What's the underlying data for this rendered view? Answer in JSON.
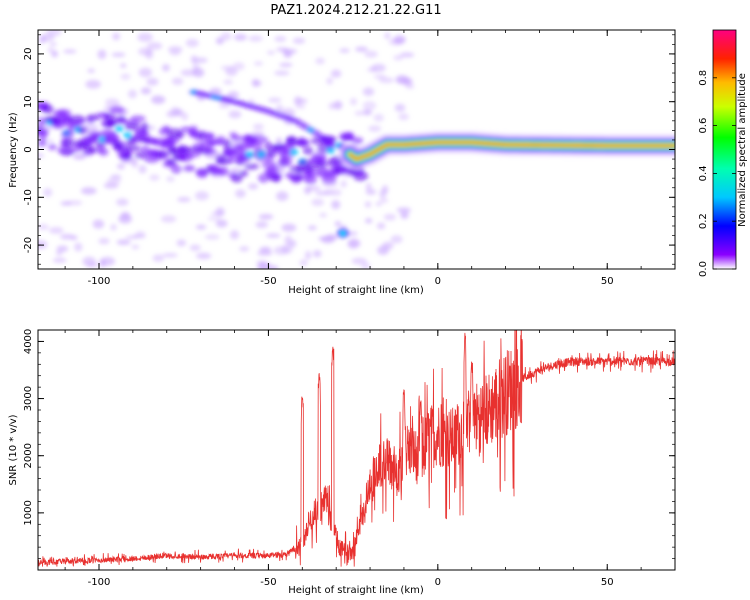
{
  "chart_data": [
    {
      "type": "heatmap",
      "title": "PAZ1.2024.212.21.22.G11",
      "xlabel": "Height of straight line (km)",
      "ylabel": "Frequency (Hz)",
      "xlim": [
        -118,
        70
      ],
      "ylim": [
        -25,
        25
      ],
      "x_ticks": [
        -100,
        -50,
        0,
        50
      ],
      "y_ticks": [
        -20,
        -10,
        0,
        10,
        20
      ],
      "colorbar": {
        "label": "Normalized spectral amplitude",
        "range": [
          0,
          1
        ],
        "ticks": [
          0.0,
          0.2,
          0.4,
          0.6,
          0.8
        ],
        "tick_labels": [
          "0.0",
          "0.2",
          "0.4",
          "0.6",
          "0.8"
        ]
      },
      "colormap_colors": [
        "#ffffff",
        "#7b00ff",
        "#0000ff",
        "#00e5ff",
        "#00ff00",
        "#ffff00",
        "#ff6600",
        "#ff0000",
        "#ff0066"
      ],
      "ridge": [
        {
          "x": -118,
          "y": 5
        },
        {
          "x": -105,
          "y": 3
        },
        {
          "x": -95,
          "y": 4
        },
        {
          "x": -85,
          "y": 1
        },
        {
          "x": -75,
          "y": 0
        },
        {
          "x": -65,
          "y": -1
        },
        {
          "x": -55,
          "y": -2
        },
        {
          "x": -45,
          "y": -2
        },
        {
          "x": -38,
          "y": -3
        },
        {
          "x": -32,
          "y": -2
        },
        {
          "x": -28,
          "y": 0
        },
        {
          "x": -24,
          "y": -2
        },
        {
          "x": -20,
          "y": -1
        },
        {
          "x": -15,
          "y": 1
        },
        {
          "x": -10,
          "y": 1
        },
        {
          "x": 0,
          "y": 1.5
        },
        {
          "x": 10,
          "y": 1.5
        },
        {
          "x": 20,
          "y": 1
        },
        {
          "x": 50,
          "y": 0.8
        },
        {
          "x": 70,
          "y": 0.8
        }
      ],
      "secondary_ridge": [
        {
          "x": -72,
          "y": 12
        },
        {
          "x": -60,
          "y": 10
        },
        {
          "x": -50,
          "y": 8
        },
        {
          "x": -42,
          "y": 6
        },
        {
          "x": -35,
          "y": 3
        },
        {
          "x": -30,
          "y": 0
        }
      ],
      "isolated_peak": {
        "x": -28,
        "y": -17.5,
        "value": 0.5
      }
    },
    {
      "type": "line",
      "xlabel": "Height of straight line (km)",
      "ylabel": "SNR (10 * v/v)",
      "xlim": [
        -118,
        70
      ],
      "ylim": [
        0,
        4200
      ],
      "x_ticks": [
        -100,
        -50,
        0,
        50
      ],
      "y_ticks": [
        1000,
        2000,
        3000,
        4000
      ],
      "color": "#e8312f",
      "series": [
        {
          "x": [
            -118,
            -110,
            -100,
            -90,
            -80,
            -70,
            -60,
            -50,
            -45,
            -40,
            -38,
            -35,
            -33,
            -31,
            -29,
            -27,
            -25,
            -23,
            -20,
            -17,
            -15,
            -12,
            -10,
            -8,
            -5,
            -3,
            0,
            3,
            5,
            8,
            10,
            12,
            15,
            18,
            20,
            25,
            30,
            35,
            40,
            45,
            50,
            55,
            60,
            65,
            70
          ],
          "values": [
            130,
            150,
            170,
            200,
            250,
            230,
            250,
            250,
            280,
            420,
            850,
            1100,
            1200,
            750,
            400,
            250,
            400,
            800,
            1500,
            1800,
            1900,
            1700,
            2100,
            2100,
            1900,
            2300,
            2400,
            2300,
            2300,
            2500,
            2600,
            2700,
            2800,
            3000,
            3100,
            3350,
            3500,
            3600,
            3650,
            3650,
            3650,
            3650,
            3650,
            3650,
            3650
          ],
          "spikes": [
            {
              "x": -40,
              "y": 3050
            },
            {
              "x": -35,
              "y": 3450
            },
            {
              "x": -31,
              "y": 3920
            },
            {
              "x": -10,
              "y": 3150
            },
            {
              "x": -5,
              "y": 3000
            },
            {
              "x": 8,
              "y": 4150
            },
            {
              "x": 10,
              "y": 3650
            }
          ]
        }
      ]
    }
  ]
}
